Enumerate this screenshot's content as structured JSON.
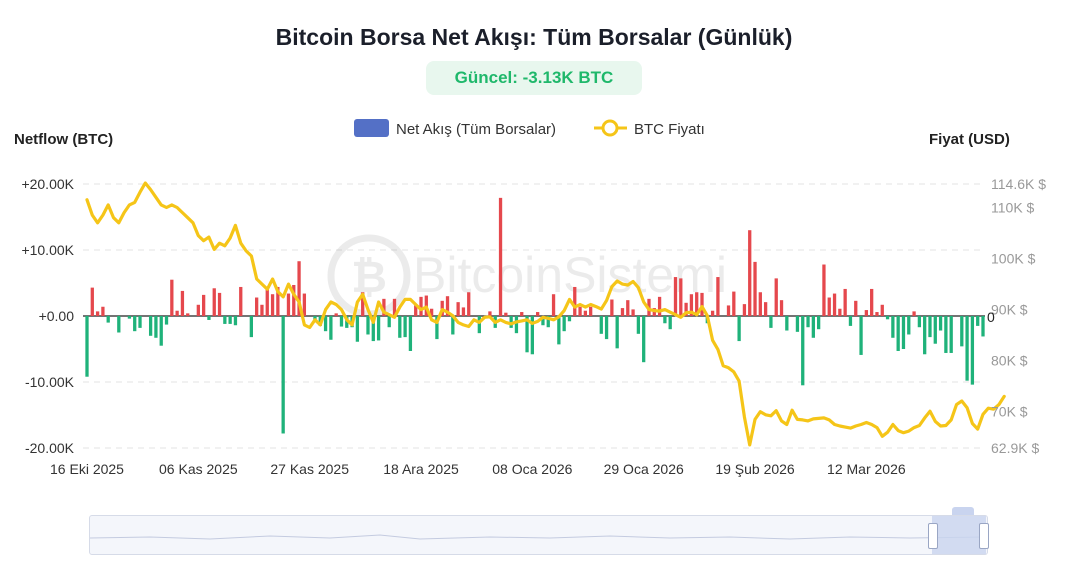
{
  "title": "Bitcoin Borsa Net Akışı: Tüm Borsalar (Günlük)",
  "badge": "Güncel: -3.13K BTC",
  "left_axis_title": "Netflow (BTC)",
  "right_axis_title": "Fiyat (USD)",
  "watermark": "BitcoinSistemi",
  "colors": {
    "positive": "#e5484d",
    "negative": "#1fb27a",
    "price": "#f5c518",
    "legend_bar": "#5470c6",
    "badge_text": "#1fb86b"
  },
  "chart_data": {
    "type": "bar",
    "legend": [
      "Net Akış (Tüm Borsalar)",
      "BTC Fiyatı"
    ],
    "legend_position": "top-center",
    "grid": true,
    "x_tick_labels": [
      "16 Eki 2025",
      "06 Kas 2025",
      "27 Kas 2025",
      "18 Ara 2025",
      "08 Oca 2026",
      "29 Oca 2026",
      "19 Şub 2026",
      "12 Mar 2026"
    ],
    "y_left_ticks": [
      "+20.00K",
      "+10.00K",
      "+0.00",
      "-10.00K",
      "-20.00K"
    ],
    "y_left_range": [
      -20000,
      20000
    ],
    "y_right_ticks": [
      "114.6K $",
      "110K $",
      "100K $",
      "90K $",
      "80K $",
      "70K $",
      "62.9K $"
    ],
    "y_right_zero_label": "0",
    "y_right_range": [
      62900,
      114600
    ],
    "start_date": "2025-10-16",
    "series": [
      {
        "name": "Net Akış (Tüm Borsalar)",
        "values": [
          -9200,
          4300,
          700,
          1400,
          -1000,
          0,
          -2500,
          0,
          -400,
          -2300,
          -1800,
          0,
          -3000,
          -3300,
          -4500,
          -1300,
          5500,
          800,
          3800,
          400,
          0,
          1700,
          3200,
          -600,
          4200,
          3500,
          -1200,
          -1200,
          -1400,
          4400,
          0,
          -3200,
          2800,
          1700,
          4300,
          3300,
          4400,
          -17800,
          3400,
          4700,
          8300,
          3400,
          0,
          -800,
          -1500,
          -2300,
          -3600,
          400,
          -1600,
          -1800,
          -1700,
          -3900,
          3600,
          -2800,
          -3800,
          -3700,
          2600,
          -1700,
          2600,
          -3300,
          -3200,
          -5300,
          1600,
          2900,
          3100,
          1100,
          -3500,
          2300,
          3000,
          -2800,
          2100,
          1300,
          3600,
          0,
          -2600,
          0,
          700,
          -1800,
          17900,
          500,
          -1800,
          -2600,
          600,
          -5500,
          -5800,
          600,
          -1400,
          -1700,
          3300,
          -4300,
          -2300,
          -800,
          4400,
          1400,
          800,
          1400,
          0,
          -2700,
          -3500,
          2500,
          -4900,
          1200,
          2400,
          1000,
          -2700,
          -7000,
          2600,
          1200,
          2900,
          -1100,
          -2000,
          5900,
          5700,
          2000,
          3300,
          3600,
          3500,
          -1100,
          800,
          5900,
          0,
          1600,
          3700,
          -3800,
          1800,
          13000,
          8200,
          3600,
          2100,
          -1800,
          5700,
          2400,
          -2200,
          0,
          -2400,
          -10500,
          -1700,
          -3300,
          -2000,
          7800,
          2800,
          3400,
          1100,
          4100,
          -1500,
          2300,
          -5900,
          900,
          4100,
          600,
          1700,
          -500,
          -3300,
          -5300,
          -5000,
          -2800,
          700,
          -1700,
          -5800,
          -3200,
          -4200,
          -2200,
          -5600,
          -5600,
          0,
          -4600,
          -9800,
          -10400,
          -1500,
          -3100
        ]
      },
      {
        "name": "BTC Fiyatı",
        "values": [
          111500,
          108500,
          107000,
          108500,
          110500,
          108000,
          107000,
          109000,
          110500,
          111000,
          113000,
          114800,
          113500,
          112000,
          110500,
          110000,
          110500,
          110000,
          109000,
          108000,
          107000,
          104500,
          103500,
          104200,
          101800,
          103000,
          102500,
          104000,
          106500,
          103000,
          101500,
          100500,
          96000,
          95000,
          94000,
          96000,
          93500,
          92500,
          95000,
          93000,
          91500,
          87000,
          86500,
          88000,
          87000,
          90000,
          91500,
          91000,
          90000,
          88000,
          87000,
          91500,
          93000,
          90000,
          87500,
          91500,
          89500,
          89000,
          88500,
          90500,
          92000,
          92000,
          91000,
          90000,
          90500,
          88000,
          87500,
          90000,
          89500,
          88800,
          87500,
          87000,
          86700,
          88000,
          87500,
          88500,
          88600,
          87500,
          88000,
          87500,
          87200,
          87600,
          87800,
          88000,
          87300,
          87700,
          88500,
          88300,
          88000,
          88600,
          89800,
          92000,
          90500,
          91000,
          90500,
          91000,
          90600,
          90100,
          91800,
          94500,
          95600,
          95000,
          94800,
          95500,
          94300,
          91500,
          90000,
          89800,
          89700,
          90000,
          89500,
          89000,
          88500,
          89400,
          89500,
          89000,
          90600,
          88800,
          84000,
          82200,
          79000,
          78600,
          77800,
          76000,
          69000,
          63500,
          68500,
          70000,
          69400,
          69200,
          70200,
          68200,
          67500,
          70300,
          68500,
          68400,
          68200,
          68600,
          68700,
          68800,
          68400,
          67500,
          67200,
          67000,
          66800,
          67200,
          67500,
          67900,
          67500,
          66900,
          65200,
          66000,
          67500,
          66300,
          65900,
          66200,
          66900,
          67300,
          68800,
          70100,
          68100,
          67200,
          67300,
          68400,
          71400,
          72100,
          70800,
          67700,
          66600,
          69500,
          70700,
          70500,
          71400,
          73000
        ]
      }
    ]
  }
}
